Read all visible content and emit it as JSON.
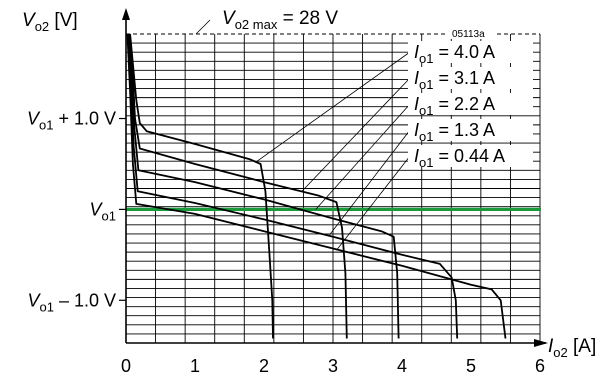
{
  "chart_data": {
    "type": "line",
    "figure_id": "05113a",
    "y_axis": {
      "label_main": "V",
      "label_sub": "o2",
      "label_unit": "[V]",
      "tick_labels": [
        {
          "main": "V",
          "sub": "o1",
          "rest": " + 1.0 V",
          "value": 1.0
        },
        {
          "main": "V",
          "sub": "o1",
          "rest": "",
          "value": 0.0
        },
        {
          "main": "V",
          "sub": "o1",
          "rest": " – 1.0 V",
          "value": -1.0
        }
      ],
      "range_units": "volts relative to Vo1",
      "ylim": [
        -1.47,
        1.93
      ]
    },
    "x_axis": {
      "label_main": "I",
      "label_sub": "o2",
      "label_unit": "[A]",
      "ticks": [
        0,
        1,
        2,
        3,
        4,
        5,
        6
      ],
      "xlim": [
        0,
        6
      ]
    },
    "max_line": {
      "label_main": "V",
      "label_sub": "o2 max",
      "label_rest": " = 28 V",
      "value": 1.93
    },
    "reference_line": {
      "value": 0.0,
      "color": "#1a9a3a"
    },
    "series": [
      {
        "name_main": "I",
        "name_sub": "o1",
        "name_rest": " = 4.0 A",
        "points": [
          [
            0.06,
            1.93
          ],
          [
            0.1,
            1.6
          ],
          [
            0.15,
            1.2
          ],
          [
            0.2,
            0.95
          ],
          [
            0.3,
            0.86
          ],
          [
            1.0,
            0.72
          ],
          [
            1.8,
            0.55
          ],
          [
            1.95,
            0.5
          ],
          [
            2.02,
            0.2
          ],
          [
            2.08,
            -0.5
          ],
          [
            2.12,
            -1.0
          ],
          [
            2.13,
            -1.42
          ]
        ]
      },
      {
        "name_main": "I",
        "name_sub": "o1",
        "name_rest": " = 3.1 A",
        "points": [
          [
            0.05,
            1.93
          ],
          [
            0.09,
            1.6
          ],
          [
            0.13,
            1.0
          ],
          [
            0.2,
            0.67
          ],
          [
            1.0,
            0.5
          ],
          [
            2.0,
            0.3
          ],
          [
            2.8,
            0.15
          ],
          [
            3.05,
            0.08
          ],
          [
            3.13,
            -0.2
          ],
          [
            3.18,
            -0.7
          ],
          [
            3.2,
            -1.42
          ]
        ]
      },
      {
        "name_main": "I",
        "name_sub": "o1",
        "name_rest": " = 2.2 A",
        "points": [
          [
            0.04,
            1.93
          ],
          [
            0.08,
            1.5
          ],
          [
            0.12,
            0.9
          ],
          [
            0.18,
            0.43
          ],
          [
            1.0,
            0.3
          ],
          [
            2.0,
            0.11
          ],
          [
            3.0,
            -0.1
          ],
          [
            3.7,
            -0.24
          ],
          [
            3.88,
            -0.3
          ],
          [
            3.93,
            -0.7
          ],
          [
            3.95,
            -1.42
          ]
        ]
      },
      {
        "name_main": "I",
        "name_sub": "o1",
        "name_rest": " = 1.3 A",
        "points": [
          [
            0.03,
            1.93
          ],
          [
            0.07,
            1.4
          ],
          [
            0.11,
            0.7
          ],
          [
            0.17,
            0.2
          ],
          [
            1.0,
            0.07
          ],
          [
            2.0,
            -0.11
          ],
          [
            3.0,
            -0.3
          ],
          [
            4.0,
            -0.5
          ],
          [
            4.55,
            -0.6
          ],
          [
            4.72,
            -0.75
          ],
          [
            4.78,
            -1.0
          ],
          [
            4.8,
            -1.42
          ]
        ]
      },
      {
        "name_main": "I",
        "name_sub": "o1",
        "name_rest": " = 0.44 A",
        "points": [
          [
            0.02,
            1.93
          ],
          [
            0.06,
            1.3
          ],
          [
            0.1,
            0.5
          ],
          [
            0.15,
            0.06
          ],
          [
            1.0,
            -0.05
          ],
          [
            2.0,
            -0.24
          ],
          [
            3.0,
            -0.43
          ],
          [
            4.0,
            -0.62
          ],
          [
            5.0,
            -0.83
          ],
          [
            5.3,
            -0.88
          ],
          [
            5.43,
            -1.0
          ],
          [
            5.5,
            -1.42
          ]
        ]
      }
    ]
  }
}
